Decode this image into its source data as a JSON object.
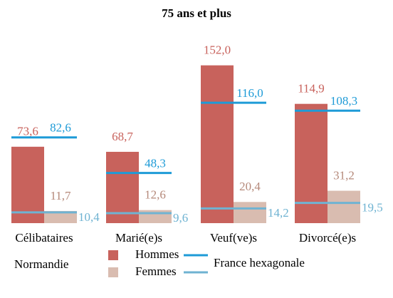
{
  "chart_data": {
    "type": "bar",
    "title": "75 ans et plus",
    "categories": [
      "Célibataires",
      "Marié(e)s",
      "Veuf(ve)s",
      "Divorcé(e)s"
    ],
    "legend_title": "Normandie",
    "series": [
      {
        "name": "Hommes",
        "color": "#c8625c",
        "label_color": "#c8625c",
        "values": [
          73.6,
          68.7,
          152.0,
          114.9
        ],
        "value_labels": [
          "73,6",
          "68,7",
          "152,0",
          "114,9"
        ]
      },
      {
        "name": "Femmes",
        "color": "#d9bcb0",
        "label_color": "#b5897a",
        "values": [
          11.7,
          12.6,
          20.4,
          31.2
        ],
        "value_labels": [
          "11,7",
          "12,6",
          "20,4",
          "31,2"
        ]
      }
    ],
    "reference": {
      "name": "France hexagonale",
      "series": [
        {
          "color": "#1e9bd7",
          "values": [
            82.6,
            48.3,
            116.0,
            108.3
          ],
          "value_labels": [
            "82,6",
            "48,3",
            "116,0",
            "108,3"
          ]
        },
        {
          "color": "#6fb3d2",
          "values": [
            10.4,
            9.6,
            14.2,
            19.5
          ],
          "value_labels": [
            "10,4",
            "9,6",
            "14,2",
            "19,5"
          ]
        }
      ]
    },
    "ylim": [
      0,
      160
    ]
  }
}
